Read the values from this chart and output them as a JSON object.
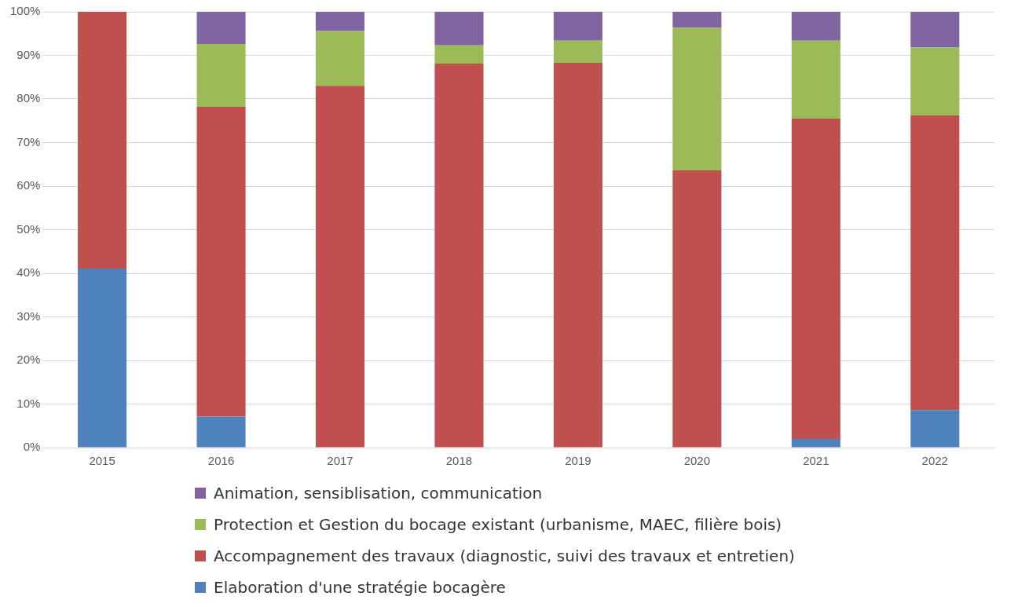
{
  "chart_data": {
    "type": "bar",
    "stacked": true,
    "categories": [
      "2015",
      "2016",
      "2017",
      "2018",
      "2019",
      "2020",
      "2021",
      "2022"
    ],
    "series": [
      {
        "name": "Elaboration d'une stratégie bocagère",
        "color": "#4f81bd",
        "values": [
          41.1,
          7.1,
          0,
          0,
          0,
          0,
          2.0,
          8.6
        ]
      },
      {
        "name": "Accompagnement des travaux (diagnostic, suivi des travaux et entretien)",
        "color": "#c0504d",
        "values": [
          58.9,
          71.1,
          83.0,
          88.1,
          88.3,
          63.6,
          73.5,
          67.6
        ]
      },
      {
        "name": "Protection et Gestion du bocage existant (urbanisme, MAEC, filière bois)",
        "color": "#9bbb59",
        "values": [
          0,
          14.4,
          12.6,
          4.2,
          5.1,
          32.7,
          17.9,
          15.6
        ]
      },
      {
        "name": "Animation, sensiblisation, communication",
        "color": "#8064a2",
        "values": [
          0,
          7.4,
          4.4,
          7.7,
          6.6,
          3.7,
          6.6,
          8.2
        ]
      }
    ],
    "ylim": [
      0,
      100
    ],
    "yticks": [
      {
        "value": 0,
        "label": "0%"
      },
      {
        "value": 10,
        "label": "10%"
      },
      {
        "value": 20,
        "label": "20%"
      },
      {
        "value": 30,
        "label": "30%"
      },
      {
        "value": 40,
        "label": "40%"
      },
      {
        "value": 50,
        "label": "50%"
      },
      {
        "value": 60,
        "label": "60%"
      },
      {
        "value": 70,
        "label": "70%"
      },
      {
        "value": 80,
        "label": "80%"
      },
      {
        "value": 90,
        "label": "90%"
      },
      {
        "value": 100,
        "label": "100%"
      }
    ],
    "grid": "y",
    "legend": "bottom"
  }
}
